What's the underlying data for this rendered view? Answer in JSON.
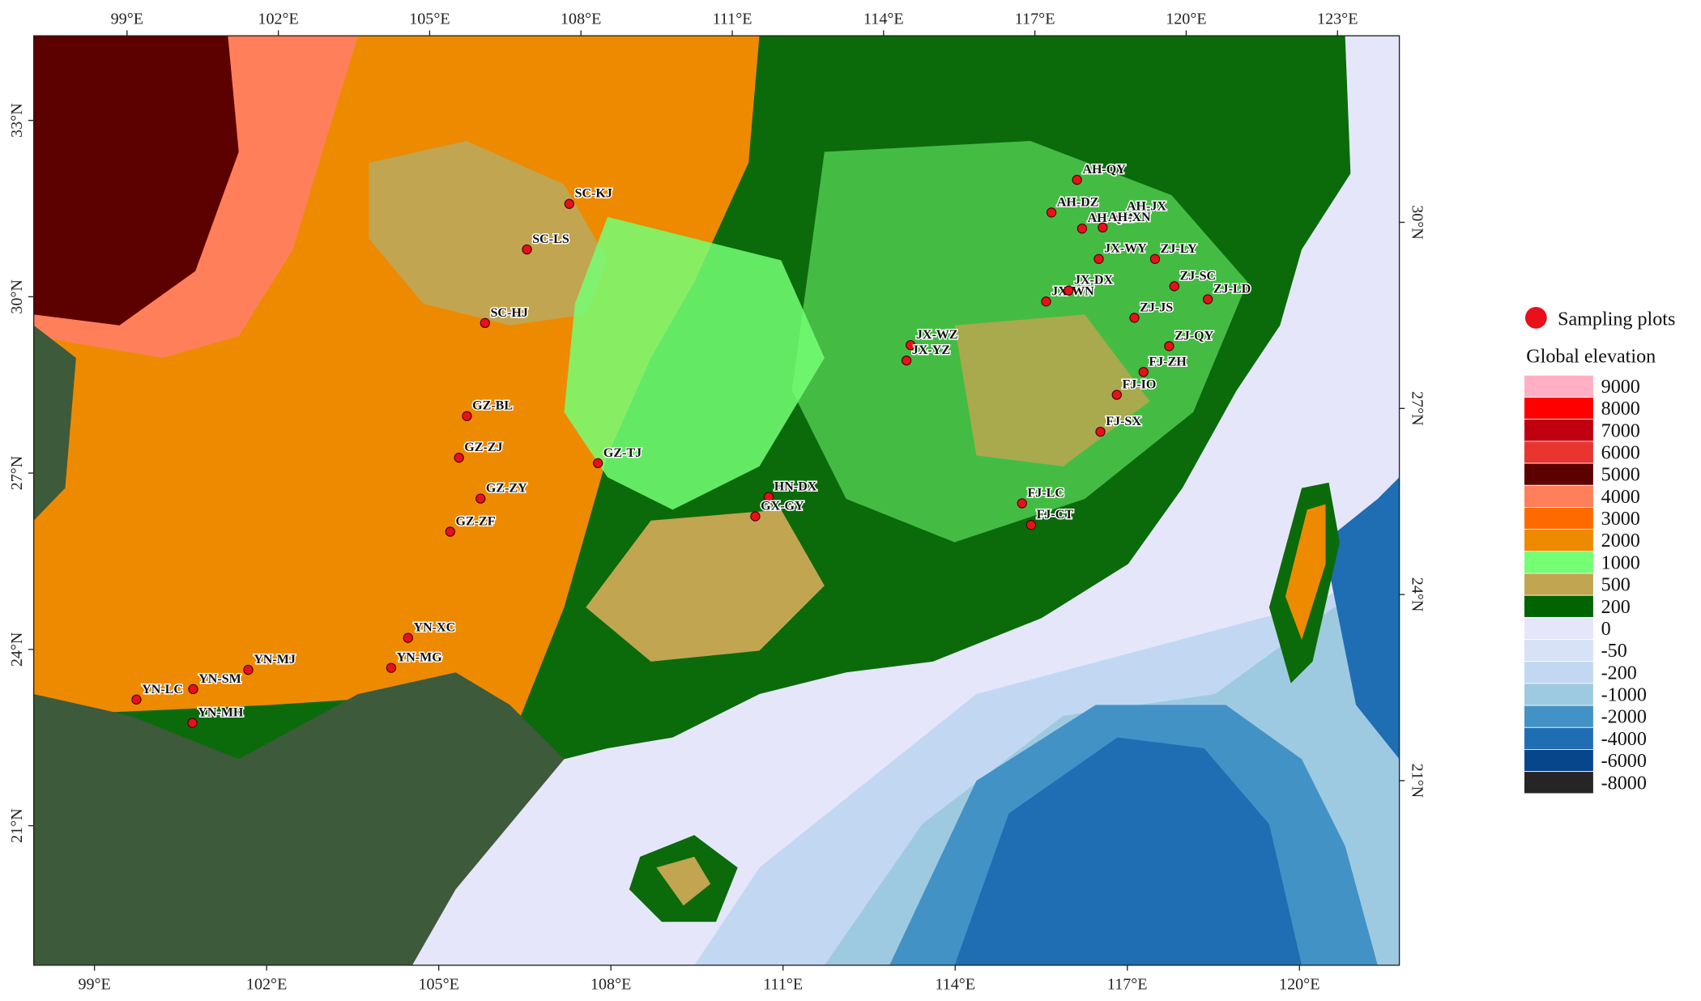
{
  "map": {
    "top_ticks": [
      {
        "value": 99,
        "label": "99°E"
      },
      {
        "value": 102,
        "label": "102°E"
      },
      {
        "value": 105,
        "label": "105°E"
      },
      {
        "value": 108,
        "label": "108°E"
      },
      {
        "value": 111,
        "label": "111°E"
      },
      {
        "value": 114,
        "label": "114°E"
      },
      {
        "value": 117,
        "label": "117°E"
      },
      {
        "value": 120,
        "label": "120°E"
      },
      {
        "value": 123,
        "label": "123°E"
      }
    ],
    "bottom_ticks": [
      {
        "value": 99,
        "label": "99°E"
      },
      {
        "value": 102,
        "label": "102°E"
      },
      {
        "value": 105,
        "label": "105°E"
      },
      {
        "value": 108,
        "label": "108°E"
      },
      {
        "value": 111,
        "label": "111°E"
      },
      {
        "value": 114,
        "label": "114°E"
      },
      {
        "value": 117,
        "label": "117°E"
      },
      {
        "value": 120,
        "label": "120°E"
      }
    ],
    "left_ticks": [
      {
        "value": 33,
        "label": "33°N"
      },
      {
        "value": 30,
        "label": "30°N"
      },
      {
        "value": 27,
        "label": "27°N"
      },
      {
        "value": 24,
        "label": "24°N"
      },
      {
        "value": 21,
        "label": "21°N"
      }
    ],
    "right_ticks": [
      {
        "value": 30,
        "label": "30°N"
      },
      {
        "value": 27,
        "label": "27°N"
      },
      {
        "value": 24,
        "label": "24°N"
      },
      {
        "value": 21,
        "label": "21°N"
      }
    ],
    "sites": [
      {
        "name": "SC-KJ",
        "lon": 107.67,
        "lat": 31.06
      },
      {
        "name": "SC-LS",
        "lon": 106.83,
        "lat": 30.34
      },
      {
        "name": "SC-HJ",
        "lon": 106.0,
        "lat": 29.15
      },
      {
        "name": "GZ-BL",
        "lon": 105.63,
        "lat": 27.61
      },
      {
        "name": "GZ-ZJ",
        "lon": 105.47,
        "lat": 26.92
      },
      {
        "name": "GZ-ZY",
        "lon": 105.86,
        "lat": 26.22
      },
      {
        "name": "GZ-ZF",
        "lon": 105.29,
        "lat": 25.69
      },
      {
        "name": "GZ-TJ",
        "lon": 108.06,
        "lat": 26.72
      },
      {
        "name": "HN-DX",
        "lon": 111.21,
        "lat": 26.03
      },
      {
        "name": "GX-GY",
        "lon": 110.94,
        "lat": 25.72
      },
      {
        "name": "YN-XC",
        "lon": 104.5,
        "lat": 23.94
      },
      {
        "name": "YN-MG",
        "lon": 104.19,
        "lat": 23.45
      },
      {
        "name": "YN-MJ",
        "lon": 101.6,
        "lat": 23.51
      },
      {
        "name": "YN-SM",
        "lon": 100.61,
        "lat": 23.22
      },
      {
        "name": "YN-LC",
        "lon": 99.59,
        "lat": 23.08
      },
      {
        "name": "YN-MH",
        "lon": 100.61,
        "lat": 22.65
      },
      {
        "name": "JX-WZ",
        "lon": 114.06,
        "lat": 28.42
      },
      {
        "name": "JX-YZ",
        "lon": 113.96,
        "lat": 28.17
      },
      {
        "name": "FJ-LC",
        "lon": 115.9,
        "lat": 25.74
      },
      {
        "name": "FJ-CT",
        "lon": 116.03,
        "lat": 25.38
      },
      {
        "name": "FJ-SX",
        "lon": 117.49,
        "lat": 26.85
      },
      {
        "name": "FJ-IO",
        "lon": 117.87,
        "lat": 27.44
      },
      {
        "name": "FJ-ZH",
        "lon": 118.42,
        "lat": 27.79
      },
      {
        "name": "ZJ-QY",
        "lon": 118.96,
        "lat": 28.19
      },
      {
        "name": "ZJ-JS",
        "lon": 118.36,
        "lat": 28.68
      },
      {
        "name": "ZJ-LD",
        "lon": 119.8,
        "lat": 28.92
      },
      {
        "name": "ZJ-SC",
        "lon": 119.19,
        "lat": 29.16
      },
      {
        "name": "ZJ-LY",
        "lon": 118.88,
        "lat": 29.62
      },
      {
        "name": "JX-WY",
        "lon": 117.8,
        "lat": 29.67
      },
      {
        "name": "JX-WN",
        "lon": 116.71,
        "lat": 29.02
      },
      {
        "name": "JX-DX",
        "lon": 117.16,
        "lat": 29.18
      },
      {
        "name": "AH-QY",
        "lon": 117.54,
        "lat": 30.98
      },
      {
        "name": "AH-DZ",
        "lon": 116.98,
        "lat": 30.47
      },
      {
        "name": "AH-JX",
        "lon": 118.32,
        "lat": 30.34
      },
      {
        "name": "AH-QM",
        "lon": 117.54,
        "lat": 30.18
      },
      {
        "name": "AH-XN",
        "lon": 117.94,
        "lat": 30.18
      }
    ],
    "site_color": "#e8101a"
  },
  "legend": {
    "sites_label": "Sampling plots",
    "elevation_title": "Global elevation",
    "entries": [
      {
        "value": 9000,
        "color": "#ffb0c4"
      },
      {
        "value": 8000,
        "color": "#ff0000"
      },
      {
        "value": 7000,
        "color": "#c00010"
      },
      {
        "value": 6000,
        "color": "#e8352f"
      },
      {
        "value": 5000,
        "color": "#5c0000"
      },
      {
        "value": 4000,
        "color": "#ff7f5a"
      },
      {
        "value": 3000,
        "color": "#ff6a00"
      },
      {
        "value": 2000,
        "color": "#ee8a00"
      },
      {
        "value": 1000,
        "color": "#74ff74"
      },
      {
        "value": 500,
        "color": "#c2a550"
      },
      {
        "value": 200,
        "color": "#006400"
      },
      {
        "value": 0,
        "color": "#e6e6fa"
      },
      {
        "value": -50,
        "color": "#d6e2f6"
      },
      {
        "value": -200,
        "color": "#c2d8f2"
      },
      {
        "value": -1000,
        "color": "#9ecae1"
      },
      {
        "value": -2000,
        "color": "#4292c6"
      },
      {
        "value": -4000,
        "color": "#1f6db3"
      },
      {
        "value": -6000,
        "color": "#08468c"
      },
      {
        "value": -8000,
        "color": "#252525"
      }
    ]
  }
}
